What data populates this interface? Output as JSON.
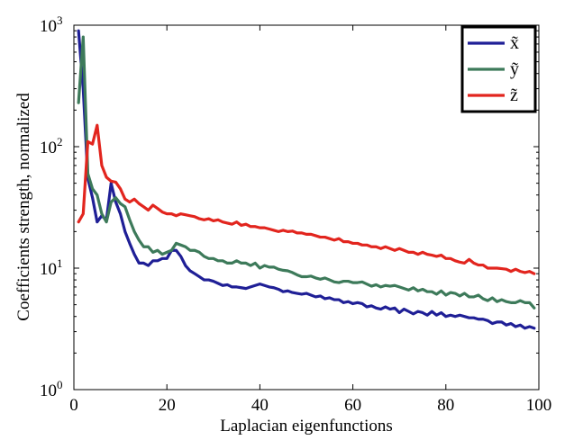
{
  "chart_data": {
    "type": "line",
    "title": "",
    "xlabel": "Laplacian eigenfunctions",
    "ylabel": "Coefficients strength, normalized",
    "xlim": [
      0,
      100
    ],
    "ylim": [
      1,
      1000
    ],
    "yscale": "log",
    "grid": false,
    "legend_position": "top-right",
    "x_ticks": [
      "0",
      "20",
      "40",
      "60",
      "80",
      "100"
    ],
    "y_ticks": [
      {
        "base": "10",
        "exp": "0"
      },
      {
        "base": "10",
        "exp": "1"
      },
      {
        "base": "10",
        "exp": "2"
      },
      {
        "base": "10",
        "exp": "3"
      }
    ],
    "x": [
      1,
      2,
      3,
      4,
      5,
      6,
      7,
      8,
      9,
      10,
      11,
      12,
      13,
      14,
      15,
      16,
      17,
      18,
      19,
      20,
      21,
      22,
      23,
      24,
      25,
      26,
      27,
      28,
      29,
      30,
      31,
      32,
      33,
      34,
      35,
      36,
      37,
      38,
      39,
      40,
      41,
      42,
      43,
      44,
      45,
      46,
      47,
      48,
      49,
      50,
      51,
      52,
      53,
      54,
      55,
      56,
      57,
      58,
      59,
      60,
      61,
      62,
      63,
      64,
      65,
      66,
      67,
      68,
      69,
      70,
      71,
      72,
      73,
      74,
      75,
      76,
      77,
      78,
      79,
      80,
      81,
      82,
      83,
      84,
      85,
      86,
      87,
      88,
      89,
      90,
      91,
      92,
      93,
      94,
      95,
      96,
      97,
      98,
      99
    ],
    "series": [
      {
        "name": "x̃",
        "color": "#1f1f96",
        "values": [
          900,
          300,
          55,
          38,
          24,
          27,
          25,
          50,
          35,
          28,
          20,
          16,
          13,
          11,
          11,
          10.5,
          11.5,
          11.5,
          12,
          12,
          14,
          14,
          12.5,
          10.5,
          9.5,
          9,
          8.5,
          8,
          8,
          7.8,
          7.5,
          7.2,
          7.3,
          7,
          7,
          6.9,
          6.8,
          7,
          7.2,
          7.4,
          7.2,
          7,
          6.9,
          6.7,
          6.4,
          6.5,
          6.3,
          6.2,
          6.1,
          6.2,
          6,
          5.8,
          5.9,
          5.6,
          5.7,
          5.5,
          5.5,
          5.2,
          5.3,
          5.1,
          5.2,
          5.1,
          4.8,
          4.9,
          4.7,
          4.6,
          4.8,
          4.6,
          4.7,
          4.3,
          4.6,
          4.4,
          4.2,
          4.4,
          4.3,
          4.1,
          4.4,
          4.1,
          4.3,
          4,
          4.1,
          4,
          4.1,
          4,
          3.9,
          3.9,
          3.8,
          3.8,
          3.7,
          3.5,
          3.6,
          3.6,
          3.4,
          3.5,
          3.3,
          3.4,
          3.2,
          3.3,
          3.2
        ]
      },
      {
        "name": "ỹ",
        "color": "#3d7a5a",
        "values": [
          230,
          800,
          60,
          45,
          40,
          28,
          24,
          35,
          38,
          34,
          32,
          25,
          20,
          17,
          15,
          15,
          13.5,
          14,
          13,
          13.5,
          14,
          16,
          15.5,
          15,
          14,
          14,
          13.5,
          12.5,
          12,
          12,
          11.5,
          11.5,
          11,
          11,
          11.5,
          11,
          11,
          10.5,
          11,
          10,
          10.5,
          10.2,
          10.2,
          9.8,
          9.6,
          9.5,
          9.2,
          8.8,
          8.5,
          8.5,
          8.6,
          8.3,
          8.1,
          8.3,
          8,
          7.7,
          7.6,
          7.8,
          7.8,
          7.6,
          7.6,
          7.7,
          7.4,
          7.1,
          7.3,
          7,
          7.2,
          7.1,
          7.2,
          7,
          6.8,
          6.6,
          6.9,
          6.5,
          6.7,
          6.4,
          6.4,
          6.1,
          6.5,
          6,
          6.3,
          6.2,
          5.9,
          6.2,
          5.8,
          5.8,
          6,
          5.6,
          5.4,
          5.7,
          5.3,
          5.5,
          5.3,
          5.2,
          5.2,
          5.4,
          5.2,
          5.2,
          4.7
        ]
      },
      {
        "name": "z̃",
        "color": "#e2251e",
        "values": [
          24,
          28,
          110,
          105,
          150,
          70,
          56,
          52,
          51,
          45,
          37,
          35,
          37,
          34,
          32,
          30,
          33,
          31,
          29,
          28,
          28,
          27,
          28,
          27.5,
          27,
          26.5,
          25.5,
          25,
          25.5,
          24.5,
          25,
          24,
          23.5,
          23,
          24,
          22.5,
          23,
          22,
          22,
          21.5,
          21.5,
          21,
          20.5,
          20,
          20.5,
          20,
          20.2,
          19.5,
          19.5,
          19,
          19,
          18.5,
          18,
          18,
          17.5,
          17,
          17.5,
          16.5,
          16.5,
          16,
          16,
          15.5,
          15.5,
          15,
          15,
          14.5,
          15,
          14.5,
          14,
          14.5,
          14,
          13.5,
          13.5,
          13,
          13.5,
          13,
          12.8,
          12.5,
          12.8,
          12,
          12,
          11.5,
          11.2,
          11,
          11.8,
          11,
          10.6,
          10.6,
          10,
          10,
          10,
          9.9,
          9.8,
          9.4,
          9.8,
          9.4,
          9.2,
          9.4,
          9
        ]
      }
    ]
  }
}
